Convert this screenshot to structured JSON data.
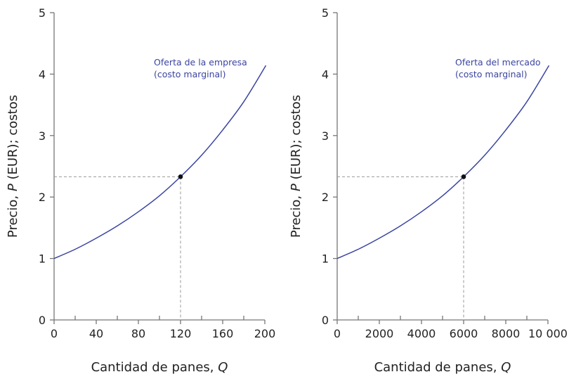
{
  "chart_data": [
    {
      "type": "line",
      "xlabel": "Cantidad de panes, ",
      "xlabel_var": "Q",
      "ylabel": "Precio, ",
      "ylabel_var": "P",
      "ylabel_rest": " (EUR); costos",
      "xlim": [
        0,
        200
      ],
      "ylim": [
        0,
        5
      ],
      "xticks": [
        0,
        40,
        80,
        120,
        160,
        200
      ],
      "xtick_labels": [
        "0",
        "40",
        "80",
        "120",
        "160",
        "200"
      ],
      "x_minor_ticks": [
        20,
        60,
        100,
        140,
        180
      ],
      "yticks": [
        0,
        1,
        2,
        3,
        4,
        5
      ],
      "ytick_labels": [
        "0",
        "1",
        "2",
        "3",
        "4",
        "5"
      ],
      "series": [
        {
          "name": "Oferta de la empresa (costo marginal)",
          "label_lines": [
            "Oferta de la empresa",
            "(costo marginal)"
          ],
          "x": [
            0,
            20,
            40,
            60,
            80,
            100,
            120,
            140,
            160,
            180,
            201
          ],
          "y": [
            1.0,
            1.15,
            1.33,
            1.53,
            1.76,
            2.02,
            2.33,
            2.68,
            3.09,
            3.55,
            4.14
          ]
        }
      ],
      "highlight_point": {
        "x": 120,
        "y": 2.33
      },
      "grid": false,
      "color": "#3a44a0"
    },
    {
      "type": "line",
      "xlabel": "Cantidad de panes, ",
      "xlabel_var": "Q",
      "ylabel": "Precio, ",
      "ylabel_var": "P",
      "ylabel_rest": " (EUR); costos",
      "xlim": [
        0,
        10000
      ],
      "ylim": [
        0,
        5
      ],
      "xticks": [
        0,
        2000,
        4000,
        6000,
        8000,
        10000
      ],
      "xtick_labels": [
        "0",
        "2000",
        "4000",
        "6000",
        "8000",
        "10 000"
      ],
      "x_minor_ticks": [
        1000,
        3000,
        5000,
        7000,
        9000
      ],
      "yticks": [
        0,
        1,
        2,
        3,
        4,
        5
      ],
      "ytick_labels": [
        "0",
        "1",
        "2",
        "3",
        "4",
        "5"
      ],
      "series": [
        {
          "name": "Oferta del mercado (costo marginal)",
          "label_lines": [
            "Oferta del mercado",
            "(costo marginal)"
          ],
          "x": [
            0,
            1000,
            2000,
            3000,
            4000,
            5000,
            6000,
            7000,
            8000,
            9000,
            10050
          ],
          "y": [
            1.0,
            1.15,
            1.33,
            1.53,
            1.76,
            2.02,
            2.33,
            2.68,
            3.09,
            3.55,
            4.14
          ]
        }
      ],
      "highlight_point": {
        "x": 6000,
        "y": 2.33
      },
      "grid": false,
      "color": "#3a44a0"
    }
  ]
}
